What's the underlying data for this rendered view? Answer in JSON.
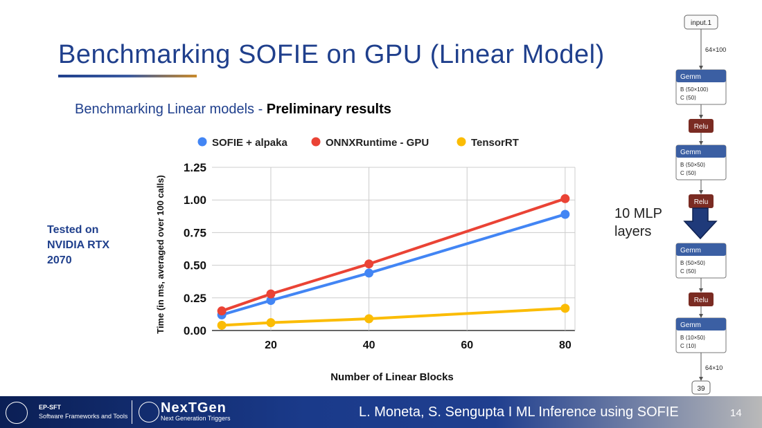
{
  "slide": {
    "title": "Benchmarking SOFIE on GPU (Linear Model)",
    "subtitle_prefix": "Benchmarking Linear models - ",
    "subtitle_bold": "Preliminary results",
    "side_note_lines": [
      "Tested on",
      "NVIDIA RTX",
      "2070"
    ],
    "mlp_note_lines": [
      "10 MLP",
      "layers"
    ]
  },
  "footer": {
    "org_line1": "EP-SFT",
    "org_line2": "Software Frameworks and Tools",
    "brand": "NexTGen",
    "brand_sub": "Next Generation Triggers",
    "author": "L. Moneta, S. Sengupta I   ML Inference using SOFIE",
    "page": "14"
  },
  "network": {
    "input_label": "input.1",
    "input_dim": "64×100",
    "output_dim": "64×10",
    "output_label": "39",
    "nodes": [
      {
        "kind": "gemm",
        "name": "Gemm",
        "B": "B  ⟨50×100⟩",
        "C": "C  ⟨50⟩"
      },
      {
        "kind": "relu",
        "name": "Relu"
      },
      {
        "kind": "gemm",
        "name": "Gemm",
        "B": "B  ⟨50×50⟩",
        "C": "C  ⟨50⟩"
      },
      {
        "kind": "relu",
        "name": "Relu"
      },
      {
        "kind": "gemm",
        "name": "Gemm",
        "B": "B  ⟨50×50⟩",
        "C": "C  ⟨50⟩"
      },
      {
        "kind": "relu",
        "name": "Relu"
      },
      {
        "kind": "gemm",
        "name": "Gemm",
        "B": "B  ⟨10×50⟩",
        "C": "C  ⟨10⟩"
      }
    ]
  },
  "colors": {
    "sofie": "#4285f4",
    "onnx": "#ea4335",
    "tensorrt": "#fbbc04",
    "title": "#1f3f8c",
    "gemm_header": "#3b5fa3",
    "relu": "#7a2b22"
  },
  "chart_data": {
    "type": "line",
    "title": "",
    "xlabel": "Number of Linear Blocks",
    "ylabel": "Time (in ms, averaged over 100 calls)",
    "x": [
      10,
      20,
      40,
      80
    ],
    "xticks": [
      20,
      40,
      60,
      80
    ],
    "yticks": [
      "0.00",
      "0.25",
      "0.50",
      "0.75",
      "1.00",
      "1.25"
    ],
    "xlim": [
      8,
      82
    ],
    "ylim": [
      0,
      1.25
    ],
    "grid": true,
    "legend_position": "top",
    "series": [
      {
        "name": "SOFIE + alpaka",
        "color": "#4285f4",
        "values": [
          0.12,
          0.23,
          0.44,
          0.89
        ]
      },
      {
        "name": "ONNXRuntime - GPU",
        "color": "#ea4335",
        "values": [
          0.15,
          0.28,
          0.51,
          1.01
        ]
      },
      {
        "name": "TensorRT",
        "color": "#fbbc04",
        "values": [
          0.04,
          0.06,
          0.09,
          0.17
        ]
      }
    ]
  }
}
